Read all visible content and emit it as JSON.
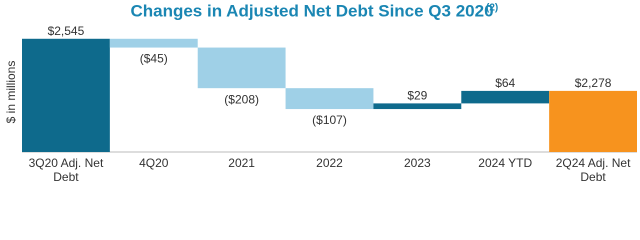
{
  "chart_data": {
    "type": "waterfall",
    "title": "Changes in Adjusted Net Debt Since Q3 2020",
    "title_note": "(2)",
    "y_label": "$ in millions",
    "categories": [
      "3Q20 Adj. Net Debt",
      "4Q20",
      "2021",
      "2022",
      "2023",
      "2024 YTD",
      "2Q24 Adj. Net Debt"
    ],
    "values": [
      2545,
      -45,
      -208,
      -107,
      29,
      64,
      2278
    ],
    "value_labels": [
      "$2,545",
      "($45)",
      "($208)",
      "($107)",
      "$29",
      "$64",
      "$2,278"
    ],
    "measures": [
      "total",
      "relative",
      "relative",
      "relative",
      "relative",
      "relative",
      "total"
    ],
    "colors": [
      "#0e6a8c",
      "#9fd0e7",
      "#9fd0e7",
      "#9fd0e7",
      "#0e6a8c",
      "#0e6a8c",
      "#f7931e"
    ],
    "ylim": [
      1965,
      2590
    ]
  }
}
